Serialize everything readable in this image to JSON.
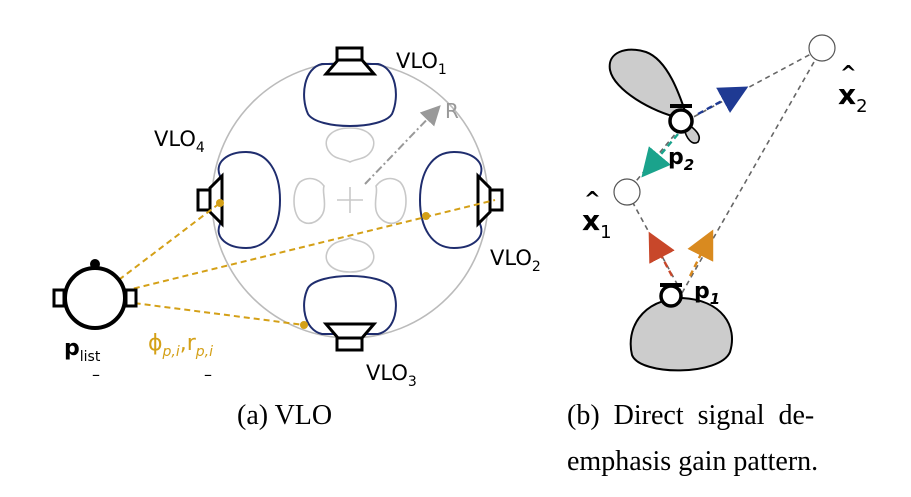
{
  "panel_a": {
    "vlo1": "VLO",
    "vlo1_sub": "1",
    "vlo2": "VLO",
    "vlo2_sub": "2",
    "vlo3": "VLO",
    "vlo3_sub": "3",
    "vlo4": "VLO",
    "vlo4_sub": "4",
    "radius": "R",
    "p_list": "p",
    "p_list_sub": "list",
    "phi": "ϕ",
    "phi_sub": "p,i",
    "comma": ",",
    "r": "r",
    "r_sub": "p,i",
    "dash1": "–",
    "dash2": "–",
    "caption": "(a) VLO"
  },
  "panel_b": {
    "x2": "x",
    "x2_sub": "2",
    "x1": "x",
    "x1_sub": "1",
    "p2": "p",
    "p2_sub": "2",
    "p1": "p",
    "p1_sub": "1",
    "caption_line1": "(b)  Direct  signal  de-",
    "caption_line2": "emphasis gain pattern."
  },
  "colors": {
    "navy": "#1f2d6e",
    "gold": "#d4a017",
    "grey": "#bbbbbb",
    "blue_arrow": "#1f3a93",
    "teal_arrow": "#1aa38c",
    "red_arrow": "#c8472a",
    "orange_arrow": "#d98a1f"
  }
}
